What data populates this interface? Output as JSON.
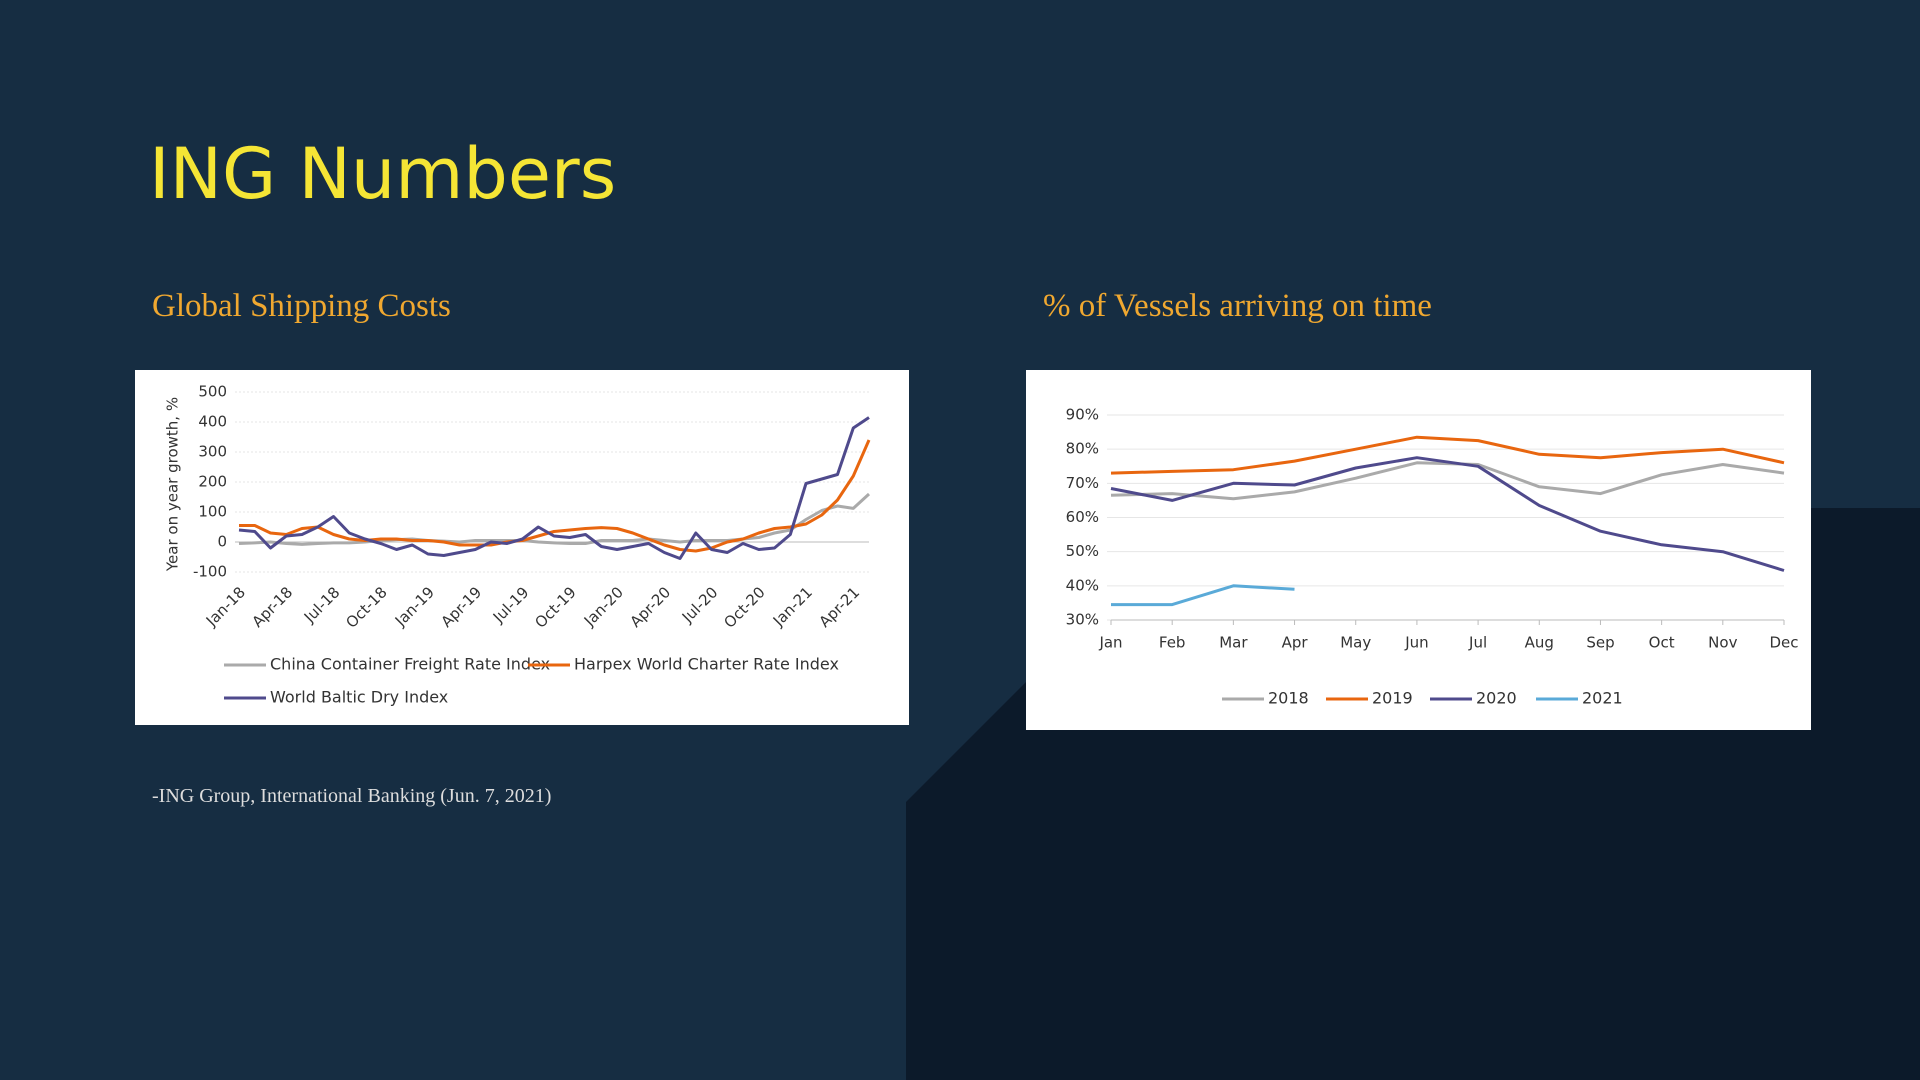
{
  "slide": {
    "title": "ING Numbers",
    "source": "-ING Group, International Banking (Jun. 7, 2021)"
  },
  "chart_data": [
    {
      "type": "line",
      "title": "Global Shipping Costs",
      "y_label": "Year on year growth, %",
      "categories": [
        "Jan-18",
        null,
        null,
        "Apr-18",
        null,
        null,
        "Jul-18",
        null,
        null,
        "Oct-18",
        null,
        null,
        "Jan-19",
        null,
        null,
        "Apr-19",
        null,
        null,
        "Jul-19",
        null,
        null,
        "Oct-19",
        null,
        null,
        "Jan-20",
        null,
        null,
        "Apr-20",
        null,
        null,
        "Jul-20",
        null,
        null,
        "Oct-20",
        null,
        null,
        "Jan-21",
        null,
        null,
        "Apr-21",
        null
      ],
      "series": [
        {
          "name": "China Container Freight Rate Index",
          "color": "#aaaaaa",
          "values": [
            -5,
            -3,
            0,
            -5,
            -8,
            -5,
            -3,
            -3,
            0,
            5,
            8,
            10,
            5,
            3,
            0,
            5,
            5,
            5,
            5,
            0,
            -3,
            -5,
            -5,
            5,
            5,
            5,
            10,
            5,
            0,
            5,
            5,
            5,
            10,
            15,
            30,
            40,
            75,
            105,
            120,
            112,
            160
          ]
        },
        {
          "name": "Harpex World Charter Rate Index",
          "color": "#e8660f",
          "values": [
            55,
            55,
            30,
            25,
            45,
            50,
            25,
            10,
            5,
            10,
            10,
            5,
            5,
            0,
            -10,
            -10,
            -10,
            0,
            5,
            20,
            35,
            40,
            45,
            48,
            45,
            30,
            10,
            -10,
            -25,
            -30,
            -20,
            0,
            10,
            30,
            45,
            50,
            60,
            90,
            140,
            220,
            340
          ]
        },
        {
          "name": "World Baltic Dry Index",
          "color": "#4f4a8c",
          "values": [
            40,
            35,
            -20,
            20,
            25,
            50,
            85,
            30,
            10,
            -5,
            -25,
            -10,
            -40,
            -45,
            -35,
            -25,
            0,
            -5,
            10,
            50,
            20,
            15,
            25,
            -15,
            -25,
            -15,
            -5,
            -35,
            -55,
            30,
            -25,
            -35,
            -5,
            -25,
            -20,
            25,
            195,
            210,
            225,
            380,
            415
          ]
        }
      ],
      "ylim": [
        -100,
        500
      ],
      "yticks": [
        -100,
        0,
        100,
        200,
        300,
        400,
        500
      ],
      "grid": true
    },
    {
      "type": "line",
      "title": "% of Vessels arriving on time",
      "categories": [
        "Jan",
        "Feb",
        "Mar",
        "Apr",
        "May",
        "Jun",
        "Jul",
        "Aug",
        "Sep",
        "Oct",
        "Nov",
        "Dec"
      ],
      "series": [
        {
          "name": "2018",
          "color": "#aaaaaa",
          "values": [
            66.5,
            67,
            65.5,
            67.5,
            71.5,
            76,
            75.5,
            69,
            67,
            72.5,
            75.5,
            73
          ]
        },
        {
          "name": "2019",
          "color": "#e8660f",
          "values": [
            73,
            73.5,
            74,
            76.5,
            80,
            83.5,
            82.5,
            78.5,
            77.5,
            79,
            80,
            76
          ]
        },
        {
          "name": "2020",
          "color": "#4f4a8c",
          "values": [
            68.5,
            65,
            70,
            69.5,
            74.5,
            77.5,
            75,
            63.5,
            56,
            52,
            50,
            44.5
          ]
        },
        {
          "name": "2021",
          "color": "#5aaad8",
          "values": [
            34.5,
            34.5,
            40,
            39,
            null,
            null,
            null,
            null,
            null,
            null,
            null,
            null
          ]
        }
      ],
      "ylim": [
        30,
        90
      ],
      "yticks": [
        {
          "value": 30,
          "label": "30%"
        },
        {
          "value": 40,
          "label": "40%"
        },
        {
          "value": 50,
          "label": "50%"
        },
        {
          "value": 60,
          "label": "60%"
        },
        {
          "value": 70,
          "label": "70%"
        },
        {
          "value": 80,
          "label": "80%"
        },
        {
          "value": 90,
          "label": "90%"
        }
      ],
      "grid": true
    }
  ]
}
